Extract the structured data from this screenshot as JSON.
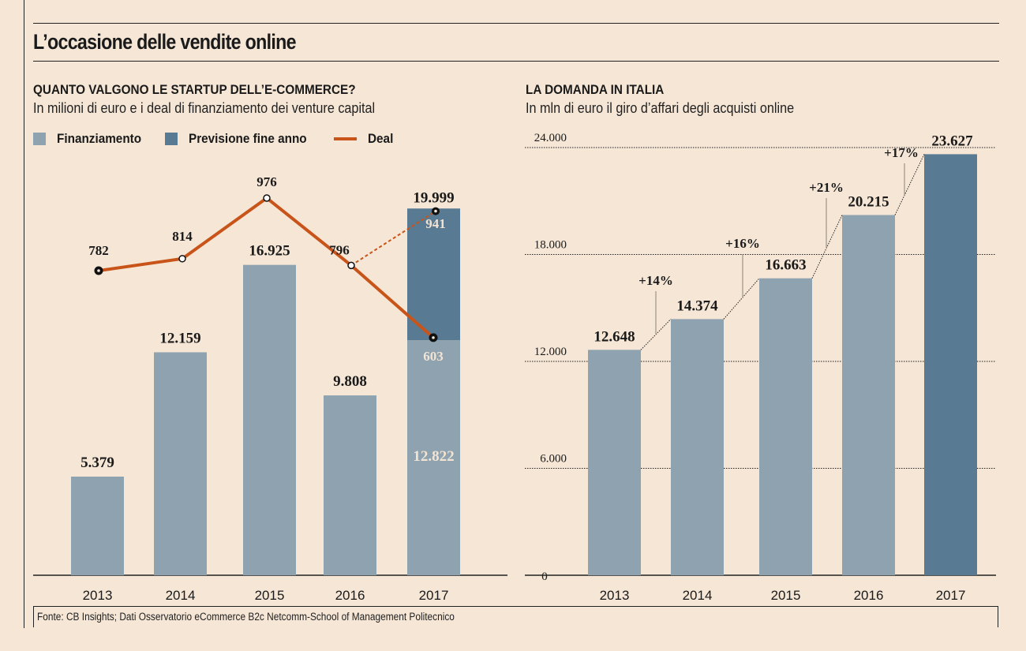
{
  "title": "L’occasione delle vendite online",
  "source": "Fonte: CB Insights; Dati Osservatorio eCommerce B2c Netcomm-School of Management Politecnico",
  "colors": {
    "background": "#f5e6d6",
    "finanziamento": "#8ea3af",
    "previsione": "#587a93",
    "deal": "#c8541a",
    "text": "#1a1a1a",
    "inner_label": "#f1e4d4"
  },
  "chart_data": [
    {
      "type": "bar",
      "title": "QUANTO VALGONO LE STARTUP DELL’E-COMMERCE?",
      "subtitle": "In milioni di euro e i deal di finanziamento dei venture capital",
      "legend": {
        "placement": "top-left",
        "items": [
          {
            "label": "Finanziamento",
            "kind": "box",
            "color": "#8ea3af"
          },
          {
            "label": "Previsione fine anno",
            "kind": "box",
            "color": "#587a93"
          },
          {
            "label": "Deal",
            "kind": "line",
            "color": "#c8541a"
          }
        ]
      },
      "categories": [
        "2013",
        "2014",
        "2015",
        "2016",
        "2017"
      ],
      "series": [
        {
          "name": "Finanziamento",
          "values": [
            5379,
            12159,
            16925,
            9808,
            12822
          ],
          "labels": [
            "5.379",
            "12.159",
            "16.925",
            "9.808",
            "12.822"
          ]
        },
        {
          "name": "Previsione fine anno",
          "values": [
            null,
            null,
            null,
            null,
            7177
          ],
          "total_label_2017": "19.999",
          "total_2017": 19999
        }
      ],
      "deal_line": {
        "name": "Deal",
        "values": [
          782,
          814,
          976,
          796,
          603
        ],
        "labels": [
          "782",
          "814",
          "976",
          "796",
          "603"
        ],
        "forecast_2017": 941,
        "forecast_label": "941"
      },
      "xlabel": "",
      "ylabel": "",
      "grid": false
    },
    {
      "type": "bar",
      "title": "LA DOMANDA IN ITALIA",
      "subtitle": "In mln di euro il giro d’affari degli acquisti online",
      "categories": [
        "2013",
        "2014",
        "2015",
        "2016",
        "2017"
      ],
      "values": [
        12648,
        14374,
        16663,
        20215,
        23627
      ],
      "labels": [
        "12.648",
        "14.374",
        "16.663",
        "20.215",
        "23.627"
      ],
      "growth": [
        "+14%",
        "+16%",
        "+21%",
        "+17%"
      ],
      "highlight_last": true,
      "yticks": [
        0,
        6000,
        12000,
        18000,
        24000
      ],
      "ytick_labels": [
        "0",
        "6.000",
        "12.000",
        "18.000",
        "24.000"
      ],
      "ylim": [
        0,
        24000
      ],
      "grid": true,
      "xlabel": "",
      "ylabel": ""
    }
  ]
}
